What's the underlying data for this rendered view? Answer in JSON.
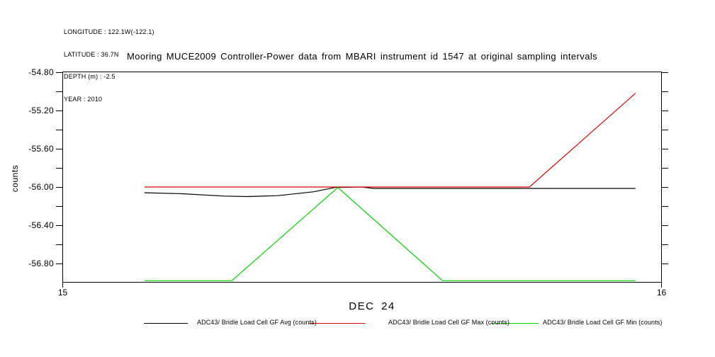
{
  "meta": {
    "longitude": "LONGITUDE : 122.1W(-122.1)",
    "latitude": "LATITUDE : 36.7N",
    "depth": "DEPTH (m) : -2.5",
    "year": "YEAR : 2010"
  },
  "colors": {
    "frame": "#000000",
    "avg": "#000000",
    "max": "#e10000",
    "min": "#00d300"
  },
  "chart_data": {
    "type": "line",
    "title": "Mooring MUCE2009 Controller-Power data from MBARI instrument id 1547 at original sampling intervals",
    "xlabel": "DEC 24",
    "ylabel": "counts",
    "xlim": [
      15,
      16
    ],
    "ylim": [
      -57.0,
      -54.8
    ],
    "grid": false,
    "legend_position": "bottom",
    "x_ticks": [
      {
        "value": 15,
        "label": "15"
      },
      {
        "value": 16,
        "label": "16"
      }
    ],
    "y_ticks": [
      {
        "value": -54.8,
        "label": "-54.80"
      },
      {
        "value": -55.0,
        "label": ""
      },
      {
        "value": -55.2,
        "label": "-55.20"
      },
      {
        "value": -55.4,
        "label": ""
      },
      {
        "value": -55.6,
        "label": "-55.60"
      },
      {
        "value": -55.8,
        "label": ""
      },
      {
        "value": -56.0,
        "label": "-56.00"
      },
      {
        "value": -56.2,
        "label": ""
      },
      {
        "value": -56.4,
        "label": "-56.40"
      },
      {
        "value": -56.6,
        "label": ""
      },
      {
        "value": -56.8,
        "label": "-56.80"
      }
    ],
    "series": [
      {
        "name": "ADC43/ Bridle Load Cell GF Avg (counts)",
        "color": "#000000",
        "points": [
          [
            15.137,
            -56.06
          ],
          [
            15.2,
            -56.07
          ],
          [
            15.27,
            -56.095
          ],
          [
            15.31,
            -56.1
          ],
          [
            15.36,
            -56.09
          ],
          [
            15.42,
            -56.05
          ],
          [
            15.455,
            -56.005
          ],
          [
            15.5,
            -56.0
          ],
          [
            15.52,
            -56.015
          ],
          [
            15.957,
            -56.015
          ]
        ]
      },
      {
        "name": "ADC43/ Bridle Load Cell GF Max (counts)",
        "color": "#e10000",
        "points": [
          [
            15.137,
            -56.0
          ],
          [
            15.78,
            -56.0
          ],
          [
            15.957,
            -55.02
          ]
        ]
      },
      {
        "name": "ADC43/ Bridle Load Cell GF Min (counts)",
        "color": "#00d300",
        "points": [
          [
            15.137,
            -56.98
          ],
          [
            15.283,
            -56.98
          ],
          [
            15.46,
            -56.005
          ],
          [
            15.635,
            -56.98
          ],
          [
            15.957,
            -56.98
          ]
        ]
      }
    ]
  }
}
